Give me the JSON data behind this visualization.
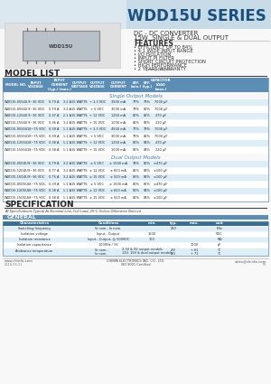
{
  "title": "WDD15U SERIES",
  "subtitle1": "DC - DC CONVERTER",
  "subtitle2": "15W  SINGLE & DUAL OUTPUT",
  "features_title": "FEATURES",
  "features": [
    "• EFFICIENCY UP TO 84%",
    "• 4:1 WIDE INPUT RANGE",
    "• I/O ISOLATION",
    "• INPUT PI FILTER",
    "• SHORT CIRCUIT PROTECTION",
    "• HIGH PERFORMANCE",
    "• 2 YEARS WARRANTY"
  ],
  "model_list_title": "MODEL LIST",
  "table_headers": [
    "MODEL NO.",
    "INPUT\nVOLTAGE",
    "INPUT\nCURRENT\n(typ.) (max.)",
    "OUTPUT\nWATTAGE",
    "OUTPUT\nVOLTAGE",
    "OUTPUT\nCURRENT",
    "EFF.\n(min.)",
    "EFF.\n(typ.)",
    "CAPACITOR\nLOAD\n(max.)"
  ],
  "single_output_label": "Single Output Models",
  "single_rows": [
    [
      "WDD15-05S4U",
      "9~36 VDC",
      "0.79 A    3.2 A",
      "15 WATTS",
      "+ 3.3 VDC",
      "3500 mA",
      "77%",
      "79%",
      "7000 μF"
    ],
    [
      "WDD15-05S4U",
      "9~36 VDC",
      "0.79 A    3.2 A",
      "15 WATTS",
      "+ 5 VDC",
      "3000 mA",
      "79%",
      "80%",
      "7000 μF"
    ],
    [
      "WDD15-12S4U",
      "9~36 VDC",
      "0.37 A    2.1 A",
      "15 WATTS",
      "+ 12 VDC",
      "1250 mA",
      "80%",
      "81%",
      "470 μF"
    ],
    [
      "WDD15-15S4U",
      "9~36 VDC",
      "0.36 A    3.2 A",
      "15 WATTS",
      "+ 15 VDC",
      "1000 mA",
      "81%",
      "83%",
      "220 μF"
    ],
    [
      "WDD15-05S5U",
      "18~75 VDC",
      "0.39 A    1.1 A",
      "15 WATTS",
      "+ 3.3 VDC",
      "4500 mA",
      "77%",
      "79%",
      "7000 μF"
    ],
    [
      "WDD15-05S5U",
      "18~75 VDC",
      "0.39 A    1.1 A",
      "15 WATTS",
      "+ 5 VDC",
      "3000 mA",
      "79%",
      "81%",
      "7000 μF"
    ],
    [
      "WDD15-12S5U",
      "18~75 VDC",
      "0.38 A    1.1 A",
      "15 WATTS",
      "+ 12 VDC",
      "1250 mA",
      "82%",
      "84%",
      "470 μF"
    ],
    [
      "WDD15-15S5U",
      "18~75 VDC",
      "0.38 A    1.1 A",
      "15 WATTS",
      "+ 15 VDC",
      "1000 mA",
      "82%",
      "84%",
      "220 μF"
    ]
  ],
  "dual_output_label": "Dual Output Models",
  "dual_rows": [
    [
      "WDD15-05D4U",
      "9~36 VDC",
      "0.79 A    3.2 A",
      "15 WATTS",
      "± 5 VDC",
      "± 1500 mA",
      "78%",
      "80%",
      "±470 μF"
    ],
    [
      "WDD15-12D4U",
      "9~36 VDC",
      "0.77 A    3.2 A",
      "15 WATTS",
      "± 12 VDC",
      "± 600 mA",
      "81%",
      "83%",
      "±100 μF"
    ],
    [
      "WDD15-15D4U",
      "9~36 VDC",
      "0.75 A    3.2 A",
      "15 WATTS",
      "± 15 VDC",
      "± 500 mA",
      "82%",
      "84%",
      "±100 μF"
    ],
    [
      "WDD15-05D5U",
      "18~75 VDC",
      "0.39 A    1.1 A",
      "15 WATTS",
      "± 5 VDC",
      "± 1500 mA",
      "80%",
      "82%",
      "±470 μF"
    ],
    [
      "WDD15-12D5U",
      "18~75 VDC",
      "0.38 A    1.1 A",
      "15 WATTS",
      "± 12 VDC",
      "± 600 mA",
      "82%",
      "84%",
      "±100 μF"
    ],
    [
      "WDD15-15D5U",
      "18~75 VDC",
      "0.38 A    1.1 A",
      "15 WATTS",
      "± 15 VDC",
      "± 500 mA",
      "82%",
      "84%",
      "±100 μF"
    ]
  ],
  "spec_title": "SPECIFICATION",
  "spec_subtitle": "All Specifications Typical At Nominal Line, Full Load, 25°C Unless Otherwise Noticed",
  "general_title": "GENERAL",
  "spec_headers": [
    "Characteristics",
    "Conditions",
    "min.",
    "typ.",
    "max.",
    "unit"
  ],
  "spec_rows": [
    [
      "Switching frequency",
      "Vi nom., Io nom.",
      "",
      "250",
      "",
      "KHz"
    ],
    [
      "Isolation voltage",
      "Input - Output",
      "1500",
      "",
      "",
      "VDC"
    ],
    [
      "Isolation resistance",
      "Input - Output, @ 500VDC",
      "100",
      "",
      "",
      "MΩ"
    ],
    [
      "Isolation capacitance",
      "1000Hz / 1V",
      "",
      "",
      "1000",
      "pF"
    ]
  ],
  "footer_left": "www.chinfa.com",
  "footer_right": "sales@chinfa.com",
  "footer_date": "2010-06-21",
  "footer_page": "P1",
  "header_bg": "#c8dce8",
  "table_header_color": "#5b8db5",
  "row_alt_color": "#ddeef7",
  "row_normal_color": "#ffffff",
  "section_label_color": "#4a80aa",
  "title_color": "#1a5080",
  "bg_color": "#f8f8f8"
}
